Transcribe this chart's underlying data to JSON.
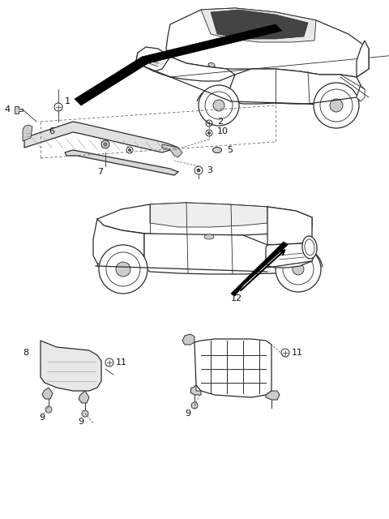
{
  "bg_color": "#ffffff",
  "fig_width": 4.8,
  "fig_height": 6.4,
  "dpi": 100,
  "line_color": "#2a2a2a",
  "dashed_color": "#666666",
  "light_gray": "#cccccc",
  "mid_gray": "#999999"
}
